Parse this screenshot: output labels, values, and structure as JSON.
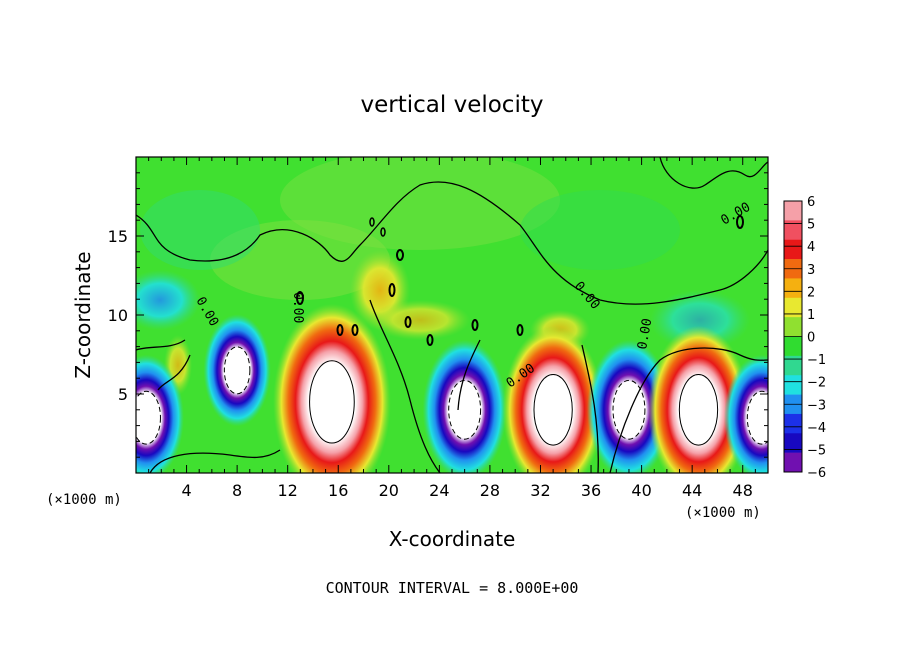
{
  "chart_data": {
    "type": "heatmap",
    "title": "vertical velocity",
    "xlabel": "X-coordinate",
    "ylabel": "Z-coordinate",
    "x_unit_label": "(×1000 m)",
    "x_unit_label_right": "(×1000 m)",
    "footer": "CONTOUR INTERVAL = 8.000E+00",
    "xlim": [
      0,
      50
    ],
    "ylim": [
      0,
      20
    ],
    "x_ticks": [
      "4",
      "8",
      "12",
      "16",
      "20",
      "24",
      "28",
      "32",
      "36",
      "40",
      "44",
      "48"
    ],
    "y_ticks": [
      "5",
      "10",
      "15"
    ],
    "colorbar": {
      "labels": [
        "6",
        "5",
        "4",
        "3",
        "2",
        "1",
        "0",
        "−1",
        "−2",
        "−3",
        "−4",
        "−5",
        "−6"
      ],
      "colors": [
        "#f5a0a8",
        "#f05060",
        "#e81818",
        "#f06a10",
        "#f5b010",
        "#e8e830",
        "#90e030",
        "#30dc30",
        "#30d890",
        "#20e0e0",
        "#2090f0",
        "#1c30e8",
        "#1808c0",
        "#7010b0"
      ]
    },
    "contour_labels": [
      "0.00",
      "0.00",
      "0.00",
      "0.00",
      "0.00",
      "0.00"
    ],
    "cells": [
      {
        "x": 0.8,
        "z": 3.5,
        "w": -9
      },
      {
        "x": 8,
        "z": 6.5,
        "w": -8
      },
      {
        "x": 15.5,
        "z": 4.5,
        "w": 14
      },
      {
        "x": 26,
        "z": 4,
        "w": -10
      },
      {
        "x": 33,
        "z": 4,
        "w": 12
      },
      {
        "x": 39,
        "z": 4,
        "w": -10
      },
      {
        "x": 44.5,
        "z": 4,
        "w": 12
      },
      {
        "x": 49.5,
        "z": 3.5,
        "w": -9
      }
    ]
  }
}
